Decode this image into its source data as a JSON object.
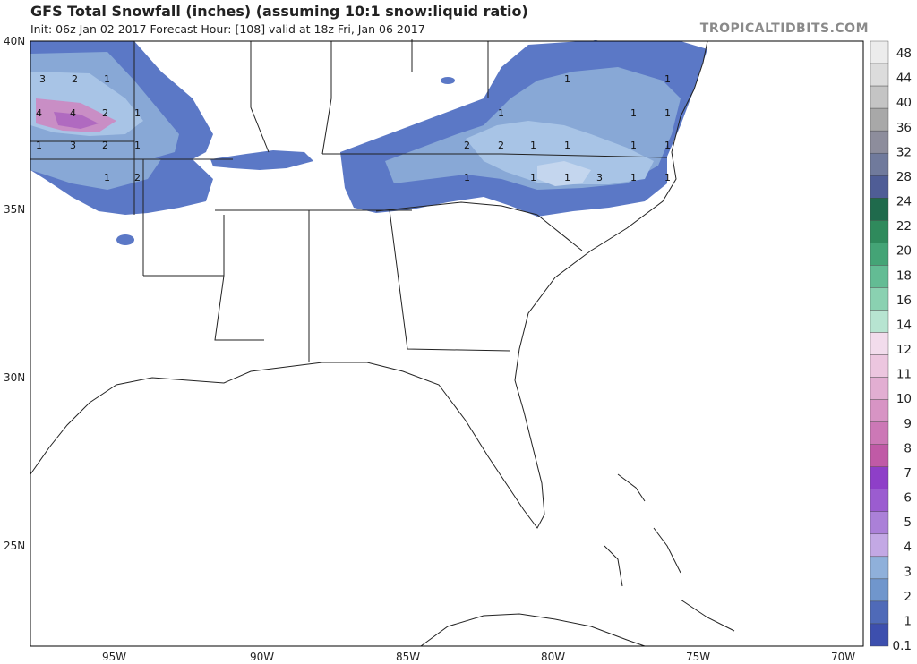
{
  "header": {
    "title": "GFS Total Snowfall (inches) (assuming 10:1 snow:liquid ratio)",
    "subtitle": "Init: 06z Jan 02 2017   Forecast Hour: [108]   valid at 18z Fri, Jan 06 2017",
    "brand": "TROPICALTIDBITS.COM"
  },
  "axes": {
    "lat_labels": [
      "40N",
      "35N",
      "30N",
      "25N"
    ],
    "lon_labels": [
      "95W",
      "90W",
      "85W",
      "80W",
      "75W",
      "70W"
    ]
  },
  "colorbar": {
    "labels": [
      "48",
      "44",
      "40",
      "36",
      "32",
      "28",
      "24",
      "22",
      "20",
      "18",
      "16",
      "14",
      "12",
      "11",
      "10",
      "9",
      "8",
      "7",
      "6",
      "5",
      "4",
      "3",
      "2",
      "1",
      "0.1"
    ],
    "colors": [
      "#ececec",
      "#dcdcdc",
      "#c4c4c4",
      "#a8a8a8",
      "#8d8d9c",
      "#707a9c",
      "#4f5d96",
      "#1f6a4c",
      "#2f8a5c",
      "#44a476",
      "#63bc94",
      "#8ad1b1",
      "#b7e4d1",
      "#f0d4e6",
      "#e9bdd9",
      "#dea3cb",
      "#d388bd",
      "#c869ae",
      "#bb4aa0",
      "#8c3bc7",
      "#9a58cc",
      "#a778d4",
      "#c1a6e1",
      "#88a8d6",
      "#6f8fc9",
      "#4f66b6",
      "#3e50b0"
    ],
    "band_colors_top_to_bottom": [
      "#ececec",
      "#dcdcdc",
      "#c4c4c4",
      "#a8a8a8",
      "#8d8d9c",
      "#707a9c",
      "#4f5d96",
      "#1f6a4c",
      "#2f8a5c",
      "#44a476",
      "#63bc94",
      "#8ad1b1",
      "#b7e4d1",
      "#f2dcec",
      "#ecc6df",
      "#e2aed2",
      "#d794c4",
      "#cc78b6",
      "#c05aa6",
      "#8e3fc8",
      "#9b5cd0",
      "#ab80d8",
      "#c3a8e4",
      "#8fb0da",
      "#7096cc",
      "#4f6ab8",
      "#3d4fae"
    ]
  },
  "plot_numbers": [
    "3",
    "2",
    "1",
    "4",
    "4",
    "2",
    "1",
    "1",
    "3",
    "2",
    "1",
    "1",
    "2",
    "1",
    "1",
    "2",
    "2",
    "1",
    "1",
    "1",
    "1",
    "1",
    "1",
    "3",
    "1",
    "1",
    "1",
    "1",
    "1",
    "1"
  ],
  "colors": {
    "snow_light": "#9fb6e0",
    "snow_mid": "#5b78c6",
    "snow_dark": "#3d4fae",
    "snow_pink": "#c98ec5",
    "snow_purple": "#b06ac0"
  }
}
